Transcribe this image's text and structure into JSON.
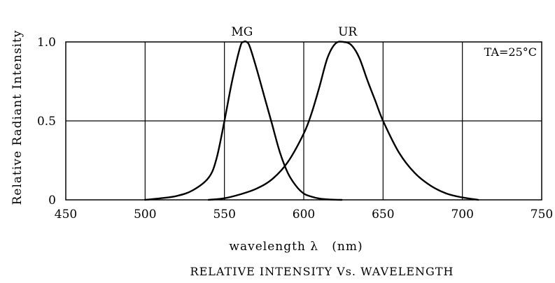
{
  "chart_data": {
    "type": "line",
    "xlabel": "wavelength λ   (nm)",
    "ylabel": "Relative Radiant Intensity",
    "caption": "RELATIVE INTENSITY Vs. WAVELENGTH",
    "annotation": "TA=25°C",
    "xlim": [
      450,
      750
    ],
    "ylim": [
      0,
      1.0
    ],
    "x_ticks": [
      450,
      500,
      550,
      600,
      650,
      700,
      750
    ],
    "x_tick_labels": [
      "450",
      "500",
      "550",
      "600",
      "650",
      "700",
      "750"
    ],
    "y_ticks": [
      0,
      0.5,
      1.0
    ],
    "y_tick_labels": [
      "0",
      "0.5",
      "1.0"
    ],
    "grid": true,
    "series": [
      {
        "name": "MG",
        "x": [
          500,
          510,
          520,
          530,
          540,
          545,
          550,
          555,
          560,
          562,
          564,
          566,
          570,
          575,
          580,
          585,
          590,
          595,
          600,
          605,
          610,
          615,
          620,
          624
        ],
        "y": [
          0.0,
          0.01,
          0.025,
          0.06,
          0.14,
          0.26,
          0.5,
          0.76,
          0.97,
          1.0,
          1.0,
          0.97,
          0.84,
          0.66,
          0.48,
          0.3,
          0.17,
          0.09,
          0.04,
          0.02,
          0.008,
          0.003,
          0.001,
          0.0
        ]
      },
      {
        "name": "UR",
        "x": [
          540,
          550,
          560,
          570,
          580,
          590,
          600,
          605,
          610,
          615,
          620,
          625,
          630,
          635,
          640,
          645,
          650,
          660,
          670,
          680,
          690,
          700,
          710
        ],
        "y": [
          0.0,
          0.01,
          0.035,
          0.07,
          0.13,
          0.24,
          0.42,
          0.55,
          0.72,
          0.9,
          0.99,
          1.0,
          0.98,
          0.9,
          0.76,
          0.63,
          0.5,
          0.3,
          0.17,
          0.09,
          0.04,
          0.015,
          0.0
        ]
      }
    ]
  }
}
